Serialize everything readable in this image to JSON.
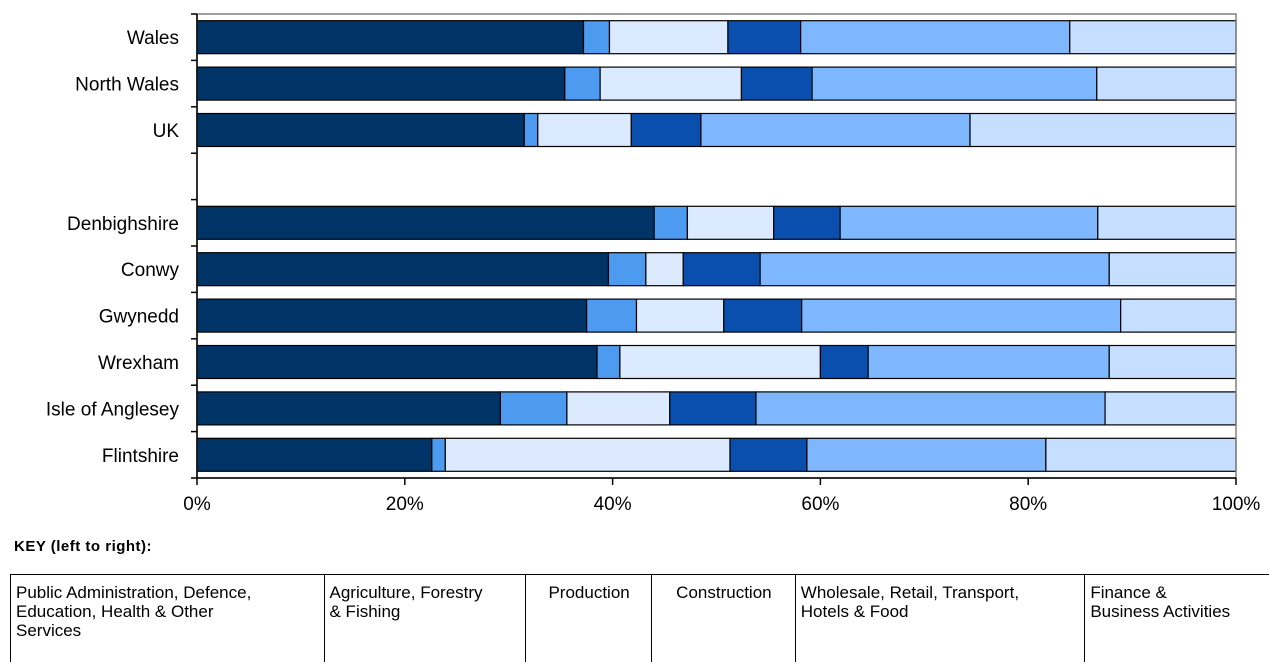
{
  "chart_data": {
    "type": "bar",
    "orientation": "horizontal",
    "stacked": "percent",
    "categories": [
      "Wales",
      "North Wales",
      "UK",
      "",
      "Denbighshire",
      "Conwy",
      "Gwynedd",
      "Wrexham",
      "Isle of Anglesey",
      "Flintshire"
    ],
    "series": [
      {
        "color": "#003366",
        "values": [
          37.2,
          35.4,
          31.5,
          null,
          44.0,
          39.6,
          37.5,
          38.5,
          29.2,
          22.6
        ]
      },
      {
        "color": "#4d9bf0",
        "values": [
          2.5,
          3.4,
          1.3,
          null,
          3.2,
          3.6,
          4.8,
          2.2,
          6.4,
          1.3
        ]
      },
      {
        "color": "#dbeaff",
        "values": [
          11.4,
          13.6,
          9.0,
          null,
          8.3,
          3.6,
          8.4,
          19.3,
          9.9,
          27.4
        ]
      },
      {
        "color": "#0a4fae",
        "values": [
          7.0,
          6.8,
          6.7,
          null,
          6.4,
          7.4,
          7.5,
          4.6,
          8.3,
          7.4
        ]
      },
      {
        "color": "#7fb7ff",
        "values": [
          25.9,
          27.4,
          25.9,
          null,
          24.8,
          33.6,
          30.7,
          23.2,
          33.6,
          23.0
        ]
      },
      {
        "color": "#c6deff",
        "values": [
          16.0,
          13.4,
          25.6,
          null,
          13.3,
          12.2,
          11.1,
          12.2,
          12.6,
          18.3
        ]
      }
    ],
    "xlim": [
      0,
      100
    ],
    "x_ticks": [
      "0%",
      "20%",
      "40%",
      "60%",
      "80%",
      "100%"
    ],
    "grid": false,
    "legend_placement": "bottom"
  },
  "key": {
    "title": "KEY  (left to right):",
    "entries": [
      {
        "label": "Public Administration, Defence,\nEducation, Health & Other\nServices"
      },
      {
        "label": "Agriculture, Forestry\n& Fishing"
      },
      {
        "label": "Production"
      },
      {
        "label": "Construction"
      },
      {
        "label": "Wholesale, Retail, Transport,\nHotels & Food"
      },
      {
        "label": "Finance &\nBusiness Activities"
      }
    ]
  }
}
